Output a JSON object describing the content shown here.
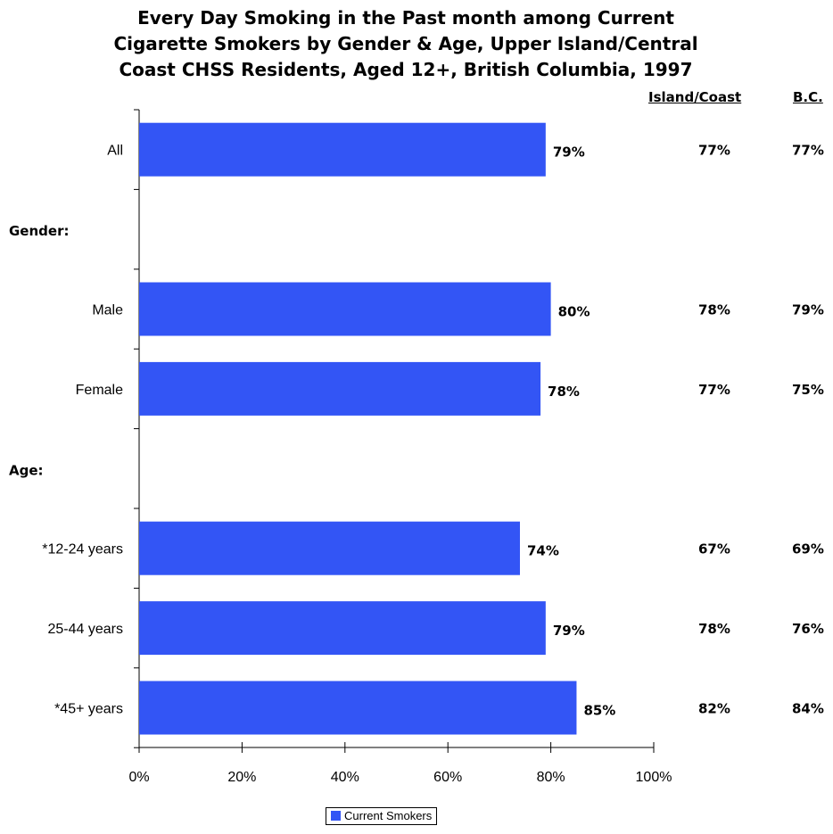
{
  "chart_data": {
    "type": "bar",
    "orientation": "horizontal",
    "title_lines": [
      "Every Day Smoking in the Past month among Current",
      "Cigarette Smokers by Gender & Age, Upper Island/Central",
      "Coast CHSS Residents, Aged 12+, British Columbia, 1997"
    ],
    "rows": [
      {
        "label": "All",
        "kind": "bar",
        "value": 79,
        "value_label": "79%",
        "island_coast": "77%",
        "bc": "77%"
      },
      {
        "label": "Gender:",
        "kind": "section"
      },
      {
        "label": "Male",
        "kind": "bar",
        "value": 80,
        "value_label": "80%",
        "island_coast": "78%",
        "bc": "79%"
      },
      {
        "label": "Female",
        "kind": "bar",
        "value": 78,
        "value_label": "78%",
        "island_coast": "77%",
        "bc": "75%"
      },
      {
        "label": "Age:",
        "kind": "section"
      },
      {
        "label": "*12-24 years",
        "kind": "bar",
        "value": 74,
        "value_label": "74%",
        "island_coast": "67%",
        "bc": "69%"
      },
      {
        "label": "25-44 years",
        "kind": "bar",
        "value": 79,
        "value_label": "79%",
        "island_coast": "78%",
        "bc": "76%"
      },
      {
        "label": "*45+ years",
        "kind": "bar",
        "value": 85,
        "value_label": "85%",
        "island_coast": "82%",
        "bc": "84%"
      }
    ],
    "comparison_headers": {
      "island_coast": "Island/Coast",
      "bc": "B.C."
    },
    "xlim": [
      0,
      100
    ],
    "x_ticks": [
      "0%",
      "20%",
      "40%",
      "60%",
      "80%",
      "100%"
    ],
    "series": [
      {
        "name": "Current Smokers",
        "color": "#3355f5"
      }
    ],
    "legend_position": "bottom-center",
    "grid": false
  }
}
